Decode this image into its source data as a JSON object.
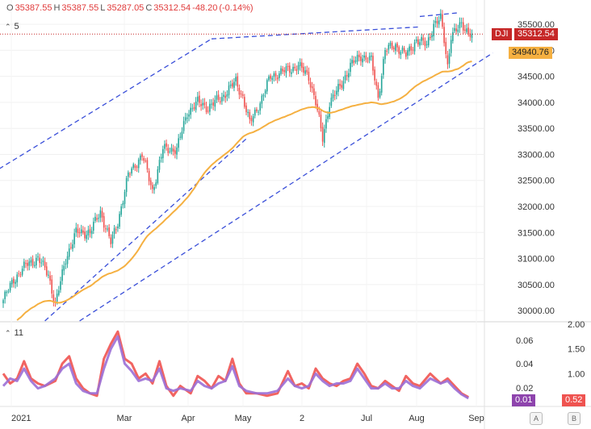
{
  "header": {
    "open_label": "O",
    "open": "35387.55",
    "high_label": "H",
    "high": "35387.55",
    "low_label": "L",
    "low": "35287.05",
    "close_label": "C",
    "close": "35312.54",
    "change": "-48.20",
    "change_pct": "(-0.14%)"
  },
  "ma_indicator": {
    "period": "5"
  },
  "oscillator_indicator": {
    "period": "11"
  },
  "price_tags": {
    "symbol": "DJI",
    "last": "35312.54",
    "ma_value": "34940.76",
    "osc_purple": "0.01",
    "osc_red": "0.52"
  },
  "colors": {
    "up": "#26a69a",
    "down": "#ef5350",
    "ma": "#f5b041",
    "channel": "#3a4fd9",
    "osc_red": "#ef5350",
    "osc_purple": "#9b6fd6",
    "last_price": "#c62828"
  },
  "axis_buttons": {
    "auto": "A",
    "log": "B"
  },
  "chart_data": [
    {
      "type": "candlestick",
      "title": "",
      "x_ticks": [
        "2021",
        "Mar",
        "Apr",
        "May",
        "2",
        "Jul",
        "Aug",
        "Sep"
      ],
      "y_ticks": [
        30000,
        30500,
        31000,
        31500,
        32000,
        32500,
        33000,
        33500,
        34000,
        34500,
        35000,
        35500
      ],
      "y_tick_labels": [
        "30000.00",
        "30500.00",
        "31000.00",
        "31500.00",
        "32000.00",
        "32500.00",
        "33000.00",
        "33500.00",
        "34000.00",
        "34500.00",
        "35000.00",
        "35500.00"
      ],
      "ylim": [
        29800,
        35750
      ],
      "close_keypoints": [
        [
          0,
          30200
        ],
        [
          6,
          30600
        ],
        [
          14,
          30900
        ],
        [
          20,
          31000
        ],
        [
          26,
          30700
        ],
        [
          30,
          30100
        ],
        [
          36,
          31000
        ],
        [
          42,
          31500
        ],
        [
          50,
          31500
        ],
        [
          56,
          31900
        ],
        [
          62,
          31300
        ],
        [
          66,
          31700
        ],
        [
          72,
          32600
        ],
        [
          80,
          33000
        ],
        [
          86,
          32300
        ],
        [
          92,
          33100
        ],
        [
          100,
          33100
        ],
        [
          106,
          33800
        ],
        [
          112,
          34000
        ],
        [
          118,
          33900
        ],
        [
          126,
          34100
        ],
        [
          134,
          34400
        ],
        [
          138,
          34100
        ],
        [
          142,
          33600
        ],
        [
          148,
          34000
        ],
        [
          154,
          34500
        ],
        [
          162,
          34600
        ],
        [
          170,
          34700
        ],
        [
          176,
          34500
        ],
        [
          180,
          34000
        ],
        [
          184,
          33300
        ],
        [
          188,
          34000
        ],
        [
          194,
          34300
        ],
        [
          200,
          34700
        ],
        [
          206,
          34900
        ],
        [
          212,
          34800
        ],
        [
          216,
          34100
        ],
        [
          220,
          35000
        ],
        [
          226,
          35100
        ],
        [
          232,
          34900
        ],
        [
          238,
          35200
        ],
        [
          244,
          35100
        ],
        [
          248,
          35500
        ],
        [
          252,
          35600
        ],
        [
          254,
          35200
        ],
        [
          256,
          34700
        ],
        [
          258,
          35300
        ],
        [
          262,
          35400
        ],
        [
          264,
          35500
        ],
        [
          268,
          35360
        ],
        [
          270,
          35312.54
        ]
      ],
      "series": [
        {
          "name": "DJI",
          "last": 35312.54
        },
        {
          "name": "",
          "last": 34940.76
        }
      ],
      "trend_lines": [
        {
          "from": [
            -50,
            31750
          ],
          "to": [
            120,
            35220
          ]
        },
        {
          "from": [
            120,
            35220
          ],
          "to": [
            240,
            35450
          ]
        },
        {
          "from": [
            240,
            35650
          ],
          "to": [
            262,
            35720
          ]
        },
        {
          "from": [
            44,
            29800
          ],
          "to": [
            282,
            34950
          ]
        },
        {
          "from": [
            24,
            29800
          ],
          "to": [
            140,
            33300
          ]
        }
      ]
    },
    {
      "type": "line",
      "title": "",
      "right_ticks": [
        0.5,
        1.0,
        1.5,
        2.0
      ],
      "right_tick_labels": [
        "0.50",
        "1.00",
        "1.50",
        "2.00"
      ],
      "inner_ticks": [
        0.02,
        0.04,
        0.06
      ],
      "inner_tick_labels": [
        "0.02",
        "0.04",
        "0.06"
      ],
      "ylim": [
        0.4,
        2.0
      ],
      "series": [
        {
          "name": "",
          "color": "#ef5350",
          "keypoints": [
            [
              0,
              1.0
            ],
            [
              4,
              0.8
            ],
            [
              8,
              0.9
            ],
            [
              12,
              1.25
            ],
            [
              16,
              0.9
            ],
            [
              20,
              0.8
            ],
            [
              24,
              0.75
            ],
            [
              30,
              0.85
            ],
            [
              34,
              1.2
            ],
            [
              38,
              1.35
            ],
            [
              42,
              0.9
            ],
            [
              46,
              0.7
            ],
            [
              50,
              0.6
            ],
            [
              54,
              0.55
            ],
            [
              58,
              1.3
            ],
            [
              62,
              1.6
            ],
            [
              66,
              1.85
            ],
            [
              70,
              1.3
            ],
            [
              74,
              1.2
            ],
            [
              78,
              0.9
            ],
            [
              82,
              1.0
            ],
            [
              86,
              0.8
            ],
            [
              90,
              1.25
            ],
            [
              94,
              0.75
            ],
            [
              98,
              0.55
            ],
            [
              102,
              0.75
            ],
            [
              108,
              0.6
            ],
            [
              112,
              0.95
            ],
            [
              116,
              0.85
            ],
            [
              120,
              0.7
            ],
            [
              124,
              0.95
            ],
            [
              128,
              0.85
            ],
            [
              132,
              1.3
            ],
            [
              136,
              0.8
            ],
            [
              140,
              0.6
            ],
            [
              146,
              0.6
            ],
            [
              152,
              0.55
            ],
            [
              158,
              0.6
            ],
            [
              164,
              1.05
            ],
            [
              168,
              0.75
            ],
            [
              172,
              0.8
            ],
            [
              176,
              0.7
            ],
            [
              180,
              1.1
            ],
            [
              184,
              0.9
            ],
            [
              188,
              0.8
            ],
            [
              192,
              0.75
            ],
            [
              196,
              0.85
            ],
            [
              200,
              0.9
            ],
            [
              204,
              1.2
            ],
            [
              208,
              1.0
            ],
            [
              212,
              0.75
            ],
            [
              216,
              0.7
            ],
            [
              220,
              0.85
            ],
            [
              224,
              0.75
            ],
            [
              228,
              0.65
            ],
            [
              232,
              0.95
            ],
            [
              236,
              0.8
            ],
            [
              240,
              0.75
            ],
            [
              246,
              1.0
            ],
            [
              252,
              0.8
            ],
            [
              256,
              0.9
            ],
            [
              260,
              0.75
            ],
            [
              264,
              0.6
            ],
            [
              268,
              0.52
            ]
          ]
        },
        {
          "name": "",
          "color": "#9b6fd6",
          "keypoints": [
            [
              0,
              0.75
            ],
            [
              4,
              0.9
            ],
            [
              8,
              0.85
            ],
            [
              12,
              1.1
            ],
            [
              16,
              0.85
            ],
            [
              20,
              0.7
            ],
            [
              24,
              0.75
            ],
            [
              30,
              0.9
            ],
            [
              34,
              1.1
            ],
            [
              38,
              1.2
            ],
            [
              42,
              0.8
            ],
            [
              46,
              0.65
            ],
            [
              50,
              0.6
            ],
            [
              54,
              0.6
            ],
            [
              58,
              1.1
            ],
            [
              62,
              1.5
            ],
            [
              66,
              1.75
            ],
            [
              70,
              1.2
            ],
            [
              74,
              1.05
            ],
            [
              78,
              0.85
            ],
            [
              82,
              0.9
            ],
            [
              86,
              0.85
            ],
            [
              90,
              1.1
            ],
            [
              94,
              0.7
            ],
            [
              98,
              0.65
            ],
            [
              102,
              0.7
            ],
            [
              108,
              0.65
            ],
            [
              112,
              0.85
            ],
            [
              116,
              0.75
            ],
            [
              120,
              0.7
            ],
            [
              124,
              0.8
            ],
            [
              128,
              0.85
            ],
            [
              132,
              1.15
            ],
            [
              136,
              0.75
            ],
            [
              140,
              0.65
            ],
            [
              146,
              0.6
            ],
            [
              152,
              0.6
            ],
            [
              158,
              0.65
            ],
            [
              164,
              0.9
            ],
            [
              168,
              0.75
            ],
            [
              172,
              0.7
            ],
            [
              176,
              0.75
            ],
            [
              180,
              1.0
            ],
            [
              184,
              0.85
            ],
            [
              188,
              0.75
            ],
            [
              192,
              0.8
            ],
            [
              196,
              0.8
            ],
            [
              200,
              0.85
            ],
            [
              204,
              1.1
            ],
            [
              208,
              0.9
            ],
            [
              212,
              0.7
            ],
            [
              216,
              0.7
            ],
            [
              220,
              0.8
            ],
            [
              224,
              0.7
            ],
            [
              228,
              0.7
            ],
            [
              232,
              0.85
            ],
            [
              236,
              0.75
            ],
            [
              240,
              0.7
            ],
            [
              246,
              0.9
            ],
            [
              252,
              0.8
            ],
            [
              256,
              0.85
            ],
            [
              260,
              0.7
            ],
            [
              264,
              0.58
            ],
            [
              268,
              0.5
            ]
          ]
        }
      ]
    }
  ]
}
